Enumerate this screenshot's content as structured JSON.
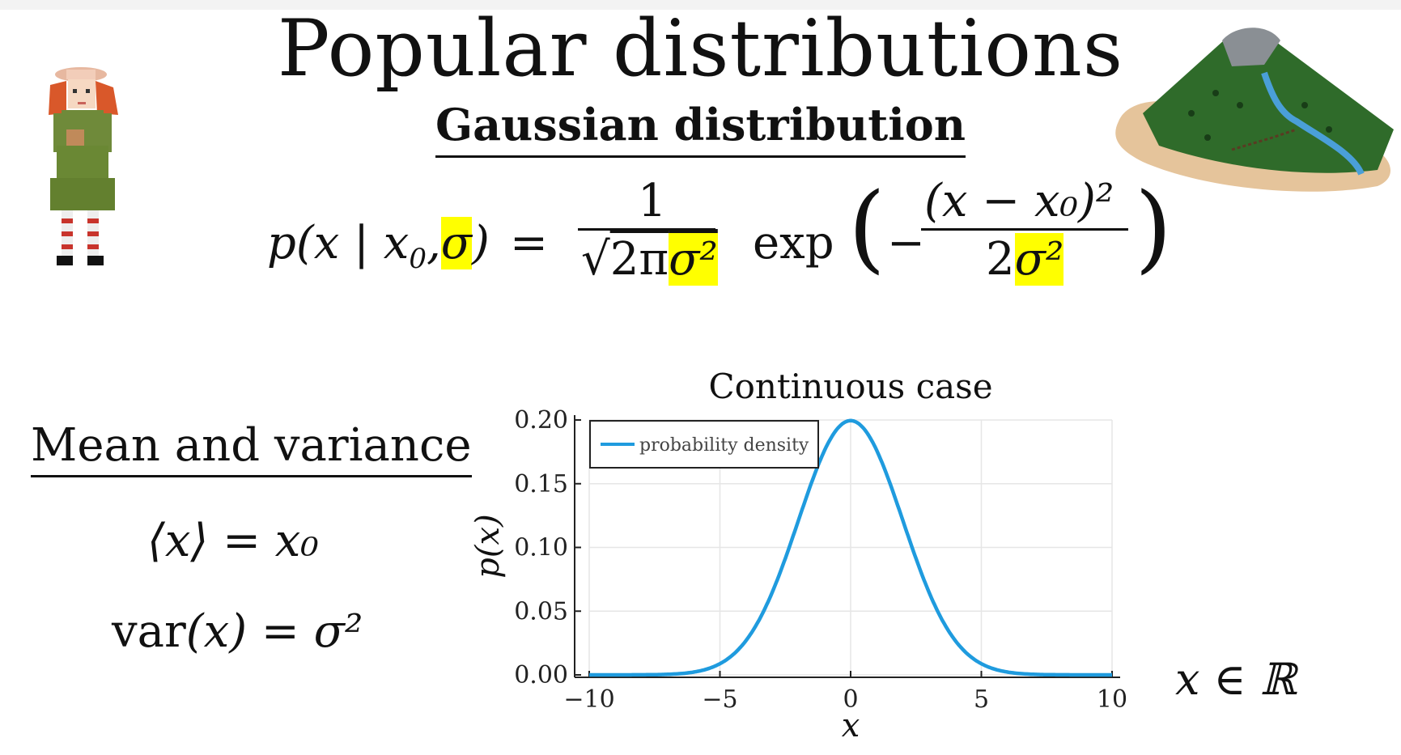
{
  "slide": {
    "title": "Popular distributions",
    "subtitle": "Gaussian distribution",
    "formula": {
      "lhs_prefix": "p(x | x",
      "lhs_sub": "0",
      "lhs_comma": ",",
      "lhs_sigma": "σ",
      "lhs_close": ")",
      "equals": "=",
      "numerator": "1",
      "denom_sqrt": "√",
      "denom_2pi": "2π",
      "denom_sigma2": "σ²",
      "exp": "exp",
      "paren_open": "(",
      "paren_close": ")",
      "minus": "−",
      "inner_num": "(x − x₀)²",
      "inner_den_2": "2",
      "inner_den_sigma2": "σ²"
    },
    "mean_variance": {
      "heading": "Mean and variance",
      "mean_eq": "⟨x⟩ = x₀",
      "var_fn": "var",
      "var_arg": "(x) = σ²"
    },
    "domain": "x ∈ ℝ",
    "highlight_color": "#ffff00"
  },
  "chart_data": {
    "type": "line",
    "title": "Continuous case",
    "xlabel": "x",
    "ylabel": "p(x)",
    "xlim": [
      -10,
      10
    ],
    "ylim": [
      0,
      0.2
    ],
    "xticks": [
      -10,
      -5,
      0,
      5,
      10
    ],
    "xtick_labels": [
      "−10",
      "−5",
      "0",
      "5",
      "10"
    ],
    "yticks": [
      0,
      0.05,
      0.1,
      0.15,
      0.2
    ],
    "ytick_labels": [
      "0.00",
      "0.05",
      "0.10",
      "0.15",
      "0.20"
    ],
    "grid": true,
    "legend": "top-left",
    "series": [
      {
        "name": "probability density",
        "color": "#1f9bde",
        "x": [
          -10,
          -9,
          -8,
          -7,
          -6,
          -5,
          -4.5,
          -4,
          -3.5,
          -3,
          -2.5,
          -2,
          -1.5,
          -1,
          -0.5,
          0,
          0.5,
          1,
          1.5,
          2,
          2.5,
          3,
          3.5,
          4,
          4.5,
          5,
          6,
          7,
          8,
          9,
          10
        ],
        "y": [
          0.0,
          0.0,
          0.0,
          0.0,
          0.0,
          0.0007,
          0.002,
          0.0054,
          0.0109,
          0.0222,
          0.0438,
          0.0736,
          0.1103,
          0.1477,
          0.1768,
          0.2,
          0.1768,
          0.1477,
          0.1103,
          0.0736,
          0.0438,
          0.0222,
          0.0109,
          0.0054,
          0.002,
          0.0007,
          0.0,
          0.0,
          0.0,
          0.0,
          0.0
        ]
      }
    ]
  }
}
